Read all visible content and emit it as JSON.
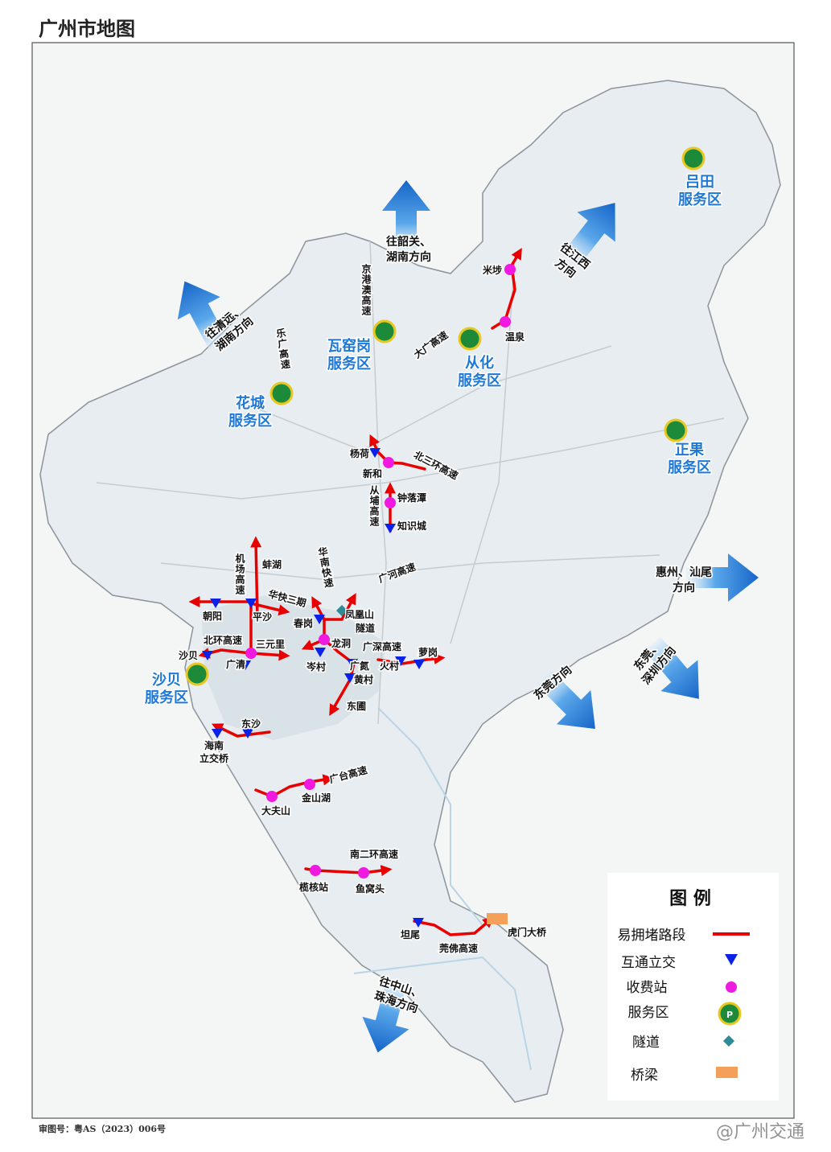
{
  "header": {
    "title": "广州市地图"
  },
  "places": [
    "杨荷",
    "新和",
    "钟落潭",
    "知识城",
    "米埗",
    "温泉",
    "蚌湖",
    "朝阳",
    "平沙",
    "春岗",
    "凤凰山",
    "隧道",
    "三元里",
    "龙洞",
    "萝岗",
    "沙贝",
    "广清",
    "岑村",
    "广氮",
    "火村",
    "黄村",
    "东圃",
    "东沙",
    "海南",
    "立交桥",
    "金山湖",
    "大夫山",
    "榄核站",
    "鱼窝头",
    "坦尾",
    "虎门大桥"
  ],
  "roads": [
    "北三环高速",
    "从埔高速",
    "大广高速",
    "京港澳高速",
    "乐广高速",
    "机场高速",
    "华南快速",
    "广河高速",
    "华快三期",
    "北环高速",
    "广深高速",
    "广台高速",
    "南二环高速",
    "莞佛高速"
  ],
  "service_areas": [
    {
      "lines": [
        "吕田",
        "服务区"
      ]
    },
    {
      "lines": [
        "瓦窑岗",
        "服务区"
      ]
    },
    {
      "lines": [
        "从化",
        "服务区"
      ]
    },
    {
      "lines": [
        "花城",
        "服务区"
      ]
    },
    {
      "lines": [
        "正果",
        "服务区"
      ]
    },
    {
      "lines": [
        "沙贝",
        "服务区"
      ]
    }
  ],
  "directions": [
    {
      "lines": [
        "往韶关、",
        "湖南方向"
      ]
    },
    {
      "lines": [
        "往清远、",
        "湖南方向"
      ]
    },
    {
      "lines": [
        "往江西",
        "方向"
      ]
    },
    {
      "lines": [
        "惠州、汕尾",
        "方向"
      ]
    },
    {
      "lines": [
        "东莞、",
        "深圳方向"
      ]
    },
    {
      "lines": [
        "东莞方向"
      ]
    },
    {
      "lines": [
        "往中山、",
        "珠海方向"
      ]
    }
  ],
  "legend": {
    "title": "图 例",
    "items": [
      "易拥堵路段",
      "互通立交",
      "收费站",
      "服务区",
      "隧道",
      "桥梁"
    ]
  },
  "footer": {
    "approval": "审图号：粤AS（2023）006号",
    "watermark": "@广州交通"
  }
}
